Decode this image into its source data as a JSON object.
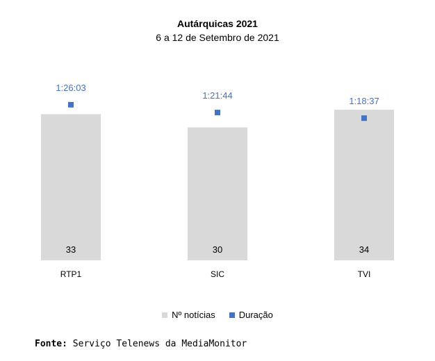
{
  "chart_data": {
    "type": "bar",
    "title": "Autárquicas 2021",
    "subtitle": "6 a 12 de Setembro de 2021",
    "categories": [
      "RTP1",
      "SIC",
      "TVI"
    ],
    "series": [
      {
        "name": "Nº notícias",
        "type": "bar",
        "values": [
          33,
          30,
          34
        ],
        "color": "#d9d9d9"
      },
      {
        "name": "Duração",
        "type": "scatter",
        "values": [
          "1:26:03",
          "1:21:44",
          "1:18:37"
        ],
        "color": "#4472c4"
      }
    ],
    "legend_position": "bottom",
    "grid": false
  },
  "source": {
    "label": "Fonte:",
    "text": "Serviço Telenews da MediaMonitor"
  }
}
